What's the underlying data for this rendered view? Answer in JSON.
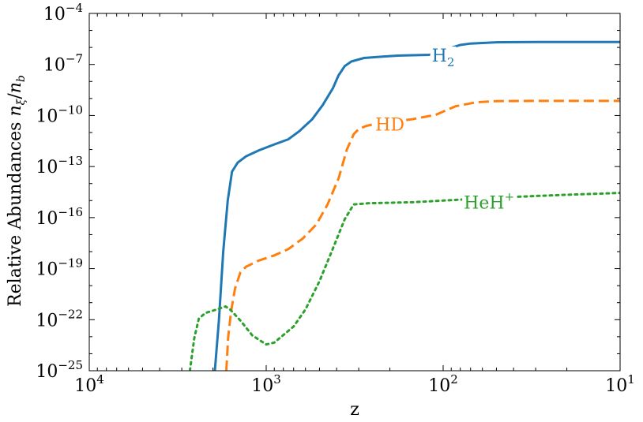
{
  "chart_data": {
    "type": "line",
    "title": "",
    "xlabel": "z",
    "ylabel": "Relative Abundances nξ/nb",
    "x_scale": "log",
    "y_scale": "log",
    "x_reversed": true,
    "xlim": [
      10000,
      10
    ],
    "ylim": [
      1e-25,
      0.0001
    ],
    "grid": false,
    "legend": "none",
    "x_ticks": [
      {
        "value": 10000,
        "base": "10",
        "exp": "4"
      },
      {
        "value": 1000,
        "base": "10",
        "exp": "3"
      },
      {
        "value": 100,
        "base": "10",
        "exp": "2"
      },
      {
        "value": 10,
        "base": "10",
        "exp": "1"
      }
    ],
    "y_ticks": [
      {
        "value": 1e-25,
        "base": "10",
        "exp": "−25"
      },
      {
        "value": 1e-22,
        "base": "10",
        "exp": "−22"
      },
      {
        "value": 1e-19,
        "base": "10",
        "exp": "−19"
      },
      {
        "value": 1e-16,
        "base": "10",
        "exp": "−16"
      },
      {
        "value": 1e-13,
        "base": "10",
        "exp": "−13"
      },
      {
        "value": 1e-10,
        "base": "10",
        "exp": "−10"
      },
      {
        "value": 1e-07,
        "base": "10",
        "exp": "−7"
      },
      {
        "value": 0.0001,
        "base": "10",
        "exp": "−4"
      }
    ],
    "series": [
      {
        "name": "H2",
        "label_main": "H",
        "label_sub": "2",
        "label_sup": "",
        "label_at": {
          "x": 100,
          "y": 3.5e-07
        },
        "color": "#1f77b4",
        "dash": "solid",
        "points": [
          [
            1950,
            1e-25
          ],
          [
            1850,
            1e-22
          ],
          [
            1750,
            1e-18
          ],
          [
            1650,
            1e-15
          ],
          [
            1560,
            5e-14
          ],
          [
            1450,
            1.7e-13
          ],
          [
            1300,
            4e-13
          ],
          [
            1100,
            9e-13
          ],
          [
            900,
            2e-12
          ],
          [
            750,
            4e-12
          ],
          [
            650,
            1.2e-11
          ],
          [
            550,
            6e-11
          ],
          [
            480,
            4e-10
          ],
          [
            420,
            4e-09
          ],
          [
            390,
            2.3e-08
          ],
          [
            360,
            8e-08
          ],
          [
            330,
            1.5e-07
          ],
          [
            280,
            2.4e-07
          ],
          [
            220,
            2.9e-07
          ],
          [
            180,
            3.3e-07
          ],
          [
            120,
            3.7e-07
          ],
          [
            95,
            8e-07
          ],
          [
            80,
            1.4e-06
          ],
          [
            70,
            1.7e-06
          ],
          [
            50,
            2e-06
          ],
          [
            30,
            2.1e-06
          ],
          [
            10,
            2.1e-06
          ]
        ]
      },
      {
        "name": "HD",
        "label_main": "HD",
        "label_sub": "",
        "label_sup": "",
        "label_at": {
          "x": 200,
          "y": 3e-11
        },
        "color": "#ff7f0e",
        "dash": "dashed",
        "points": [
          [
            1680,
            1e-25
          ],
          [
            1640,
            1e-23
          ],
          [
            1580,
            3e-22
          ],
          [
            1500,
            7e-21
          ],
          [
            1400,
            6e-20
          ],
          [
            1300,
            1.3e-19
          ],
          [
            1100,
            3e-19
          ],
          [
            900,
            6e-19
          ],
          [
            750,
            1.4e-18
          ],
          [
            620,
            6e-18
          ],
          [
            520,
            4e-17
          ],
          [
            450,
            6e-16
          ],
          [
            390,
            2e-14
          ],
          [
            350,
            1e-12
          ],
          [
            320,
            8e-12
          ],
          [
            300,
            1.6e-11
          ],
          [
            270,
            2.5e-11
          ],
          [
            230,
            3.5e-11
          ],
          [
            150,
            6e-11
          ],
          [
            110,
            1.1e-10
          ],
          [
            85,
            3.5e-10
          ],
          [
            65,
            6e-10
          ],
          [
            50,
            7e-10
          ],
          [
            30,
            7.2e-10
          ],
          [
            10,
            7.2e-10
          ]
        ]
      },
      {
        "name": "HeH+",
        "label_main": "HeH",
        "label_sub": "",
        "label_sup": "+",
        "label_at": {
          "x": 55,
          "y": 8e-16
        },
        "color": "#2ca02c",
        "dash": "dotted",
        "points": [
          [
            2700,
            1e-25
          ],
          [
            2550,
            8e-24
          ],
          [
            2400,
            1.2e-22
          ],
          [
            2200,
            2.5e-22
          ],
          [
            1900,
            4e-22
          ],
          [
            1700,
            6e-22
          ],
          [
            1600,
            4e-22
          ],
          [
            1400,
            9e-23
          ],
          [
            1200,
            1.2e-23
          ],
          [
            1000,
            3.5e-24
          ],
          [
            900,
            4.5e-24
          ],
          [
            700,
            4e-23
          ],
          [
            600,
            4e-22
          ],
          [
            500,
            1.8e-20
          ],
          [
            420,
            1.5e-18
          ],
          [
            360,
            8e-17
          ],
          [
            320,
            6e-16
          ],
          [
            260,
            7e-16
          ],
          [
            150,
            8e-16
          ],
          [
            100,
            1e-15
          ],
          [
            50,
            1.5e-15
          ],
          [
            20,
            2.2e-15
          ],
          [
            10,
            2.8e-15
          ]
        ]
      }
    ]
  }
}
